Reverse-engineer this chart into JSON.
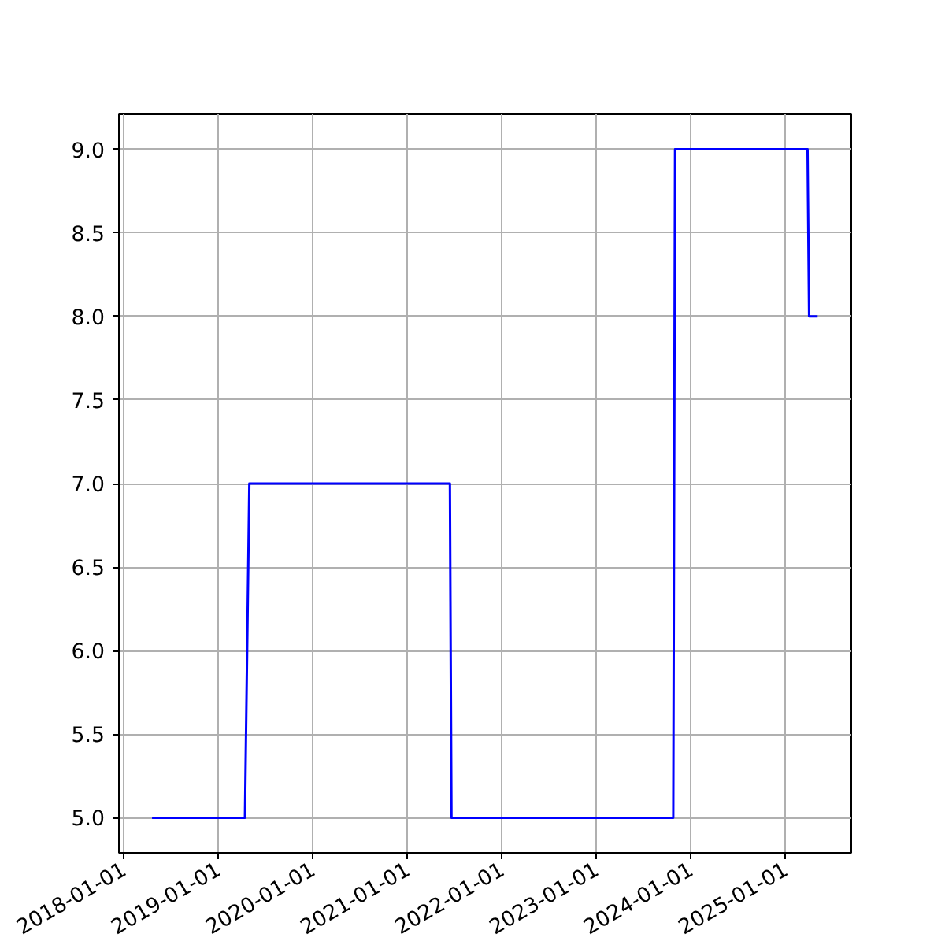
{
  "chart_data": {
    "type": "line",
    "x": [
      "2018-04-20",
      "2019-04-14",
      "2019-05-01",
      "2021-06-14",
      "2021-06-20",
      "2023-10-25",
      "2023-11-01",
      "2025-03-27",
      "2025-04-02",
      "2025-05-05"
    ],
    "series": [
      {
        "color": "#0000ff",
        "values": [
          5,
          5,
          7,
          7,
          5,
          5,
          9,
          9,
          8,
          8
        ]
      }
    ],
    "xlim": [
      "2017-12-13",
      "2025-09-12"
    ],
    "xticks": [
      "2018-01-01",
      "2019-01-01",
      "2020-01-01",
      "2021-01-01",
      "2022-01-01",
      "2023-01-01",
      "2024-01-01",
      "2025-01-01"
    ],
    "ylim": [
      4.79,
      9.21
    ],
    "yticks": [
      {
        "value": 5,
        "label": "5.0"
      },
      {
        "value": 5.5,
        "label": "5.5"
      },
      {
        "value": 6,
        "label": "6.0"
      },
      {
        "value": 6.5,
        "label": "6.5"
      },
      {
        "value": 7,
        "label": "7.0"
      },
      {
        "value": 7.5,
        "label": "7.5"
      },
      {
        "value": 8,
        "label": "8.0"
      },
      {
        "value": 8.5,
        "label": "8.5"
      },
      {
        "value": 9,
        "label": "9.0"
      }
    ],
    "grid": true,
    "marker": "none",
    "line_style": "solid"
  }
}
